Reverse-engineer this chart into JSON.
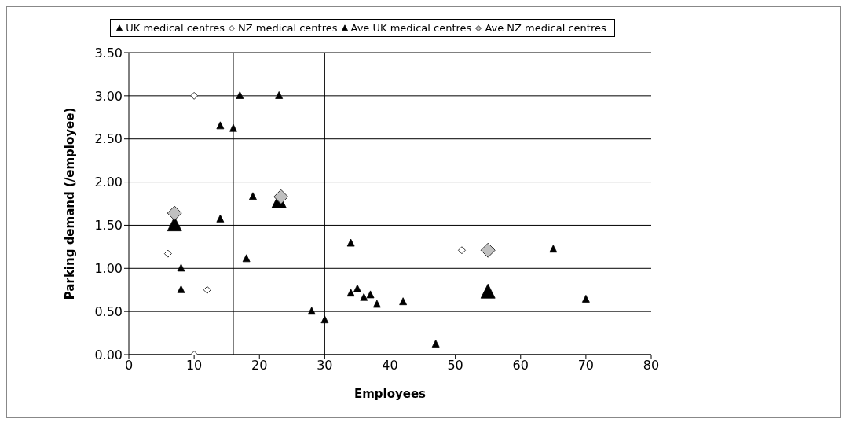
{
  "chart_data": {
    "type": "scatter",
    "xlabel": "Employees",
    "ylabel": "Parking demand (/employee)",
    "xlim": [
      0,
      80
    ],
    "xticks": [
      0,
      10,
      20,
      30,
      40,
      50,
      60,
      70,
      80
    ],
    "ylim": [
      0,
      3.5
    ],
    "yticks": [
      {
        "value": 0,
        "label": "0.00"
      },
      {
        "value": 0.5,
        "label": "0.50"
      },
      {
        "value": 1,
        "label": "1.00"
      },
      {
        "value": 1.5,
        "label": "1.50"
      },
      {
        "value": 2,
        "label": "2.00"
      },
      {
        "value": 2.5,
        "label": "2.50"
      },
      {
        "value": 3,
        "label": "3.00"
      },
      {
        "value": 3.5,
        "label": "3.50"
      }
    ],
    "grid": "y",
    "legend": "top",
    "ref_lines": [
      {
        "axis": "x",
        "value": 16,
        "color": "#000000"
      },
      {
        "axis": "x",
        "value": 30,
        "color": "#000000"
      }
    ],
    "series": [
      {
        "name": "UK medical centres",
        "color": "#000000",
        "marker": "triangle",
        "x": [
          8,
          8,
          14,
          14,
          16,
          17,
          18,
          19,
          23,
          28,
          30,
          34,
          34,
          35,
          36,
          37,
          38,
          42,
          47,
          65,
          70
        ],
        "values": [
          1.0,
          0.75,
          2.65,
          1.57,
          2.62,
          3.0,
          1.11,
          1.83,
          3.0,
          0.5,
          0.4,
          1.29,
          0.71,
          0.76,
          0.66,
          0.69,
          0.58,
          0.61,
          0.12,
          1.22,
          0.64
        ]
      },
      {
        "name": "NZ medical centres",
        "color": "#ffffff",
        "marker": "diamond",
        "x": [
          6,
          10,
          12,
          10,
          51
        ],
        "values": [
          1.17,
          3.0,
          0.75,
          0.0,
          1.21
        ]
      },
      {
        "name": "Ave UK medical centres",
        "color": "#000000",
        "marker": "triangle",
        "x": [
          7,
          23,
          55
        ],
        "values": [
          1.5,
          1.77,
          0.72
        ]
      },
      {
        "name": "Ave NZ medical centres",
        "color": "#c0c0c0",
        "marker": "diamond",
        "x": [
          7,
          23.3,
          55
        ],
        "values": [
          1.64,
          1.83,
          1.21
        ]
      }
    ]
  }
}
